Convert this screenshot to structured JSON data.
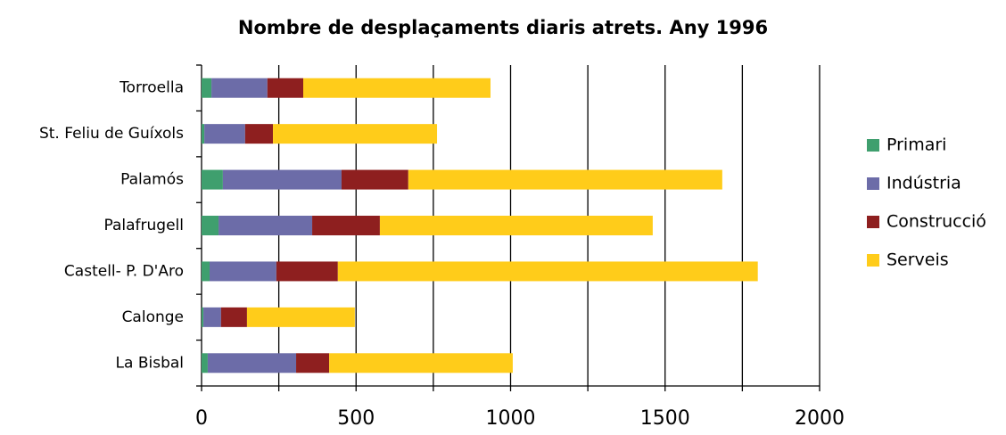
{
  "chart_data": {
    "type": "stacked_bar_horizontal",
    "title": "Nombre de desplaçaments diaris atrets. Any 1996",
    "categories": [
      "Torroella",
      "St. Feliu de Guíxols",
      "Palamós",
      "Palafrugell",
      "Castell- P. D'Aro",
      "Calonge",
      "La Bisbal"
    ],
    "series": [
      {
        "name": "Primari",
        "color": "#3f9f6e",
        "values": [
          32,
          9,
          69,
          55,
          26,
          6,
          20
        ]
      },
      {
        "name": "Indústria",
        "color": "#6c6ca8",
        "values": [
          181,
          132,
          384,
          303,
          216,
          57,
          286
        ]
      },
      {
        "name": "Construcció",
        "color": "#8e1f1f",
        "values": [
          116,
          90,
          216,
          219,
          199,
          84,
          107
        ]
      },
      {
        "name": "Serveis",
        "color": "#ffcc1a",
        "values": [
          606,
          531,
          1016,
          883,
          1359,
          349,
          594
        ]
      }
    ],
    "xlim": [
      0,
      2000
    ],
    "xticks": [
      0,
      500,
      1000,
      1500,
      2000
    ],
    "minor_xticks": [
      250,
      750,
      1250,
      1750
    ],
    "grid": true,
    "legend": "right"
  }
}
